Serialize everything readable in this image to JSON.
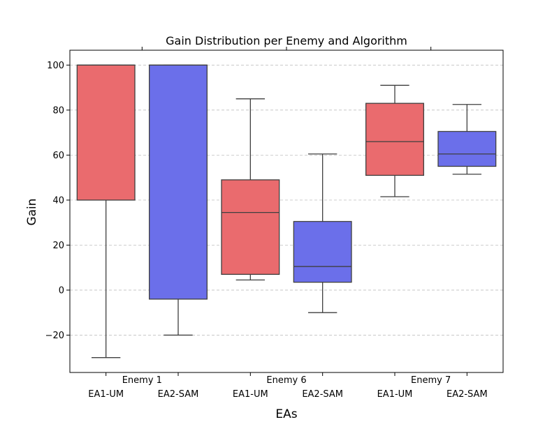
{
  "chart_data": {
    "type": "box",
    "title": "Gain Distribution per Enemy and Algorithm",
    "xlabel": "EAs",
    "ylabel": "Gain",
    "ylim": [
      -36.6,
      106.6
    ],
    "yticks": [
      -20,
      0,
      20,
      40,
      60,
      80,
      100
    ],
    "ytick_labels": [
      "−20",
      "0",
      "20",
      "40",
      "60",
      "80",
      "100"
    ],
    "grid": "y",
    "categories": [
      "EA1-UM",
      "EA2-SAM",
      "EA1-UM",
      "EA2-SAM",
      "EA1-UM",
      "EA2-SAM"
    ],
    "groups": [
      {
        "label": "Enemy 1"
      },
      {
        "label": "Enemy 6"
      },
      {
        "label": "Enemy 7"
      }
    ],
    "series": [
      {
        "group": 0,
        "algorithm": "EA1-UM",
        "color": "#ea6b6e",
        "whisker_low": -30,
        "q1": 40,
        "median": 100,
        "q3": 100,
        "whisker_high": 100
      },
      {
        "group": 0,
        "algorithm": "EA2-SAM",
        "color": "#6b6fea",
        "whisker_low": -20,
        "q1": -4,
        "median": 100,
        "q3": 100,
        "whisker_high": 100
      },
      {
        "group": 1,
        "algorithm": "EA1-UM",
        "color": "#ea6b6e",
        "whisker_low": 4.5,
        "q1": 7,
        "median": 34.5,
        "q3": 49,
        "whisker_high": 85
      },
      {
        "group": 1,
        "algorithm": "EA2-SAM",
        "color": "#6b6fea",
        "whisker_low": -10,
        "q1": 3.5,
        "median": 10.5,
        "q3": 30.5,
        "whisker_high": 60.5
      },
      {
        "group": 2,
        "algorithm": "EA1-UM",
        "color": "#ea6b6e",
        "whisker_low": 41.5,
        "q1": 51,
        "median": 66,
        "q3": 83,
        "whisker_high": 91
      },
      {
        "group": 2,
        "algorithm": "EA2-SAM",
        "color": "#6b6fea",
        "whisker_low": 51.5,
        "q1": 55,
        "median": 60.5,
        "q3": 70.5,
        "whisker_high": 82.5
      }
    ]
  }
}
